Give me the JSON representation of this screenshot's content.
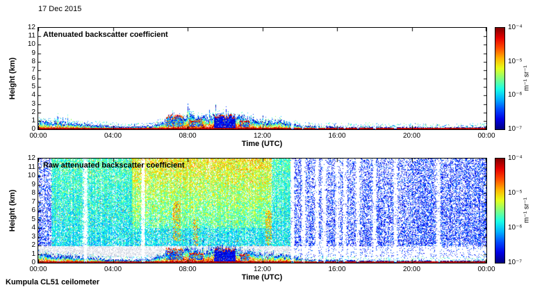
{
  "page": {
    "date_label": "17 Dec 2015",
    "footer_label": "Kumpula CL51 ceilometer"
  },
  "colors": {
    "background": "#ffffff",
    "axis": "#000000",
    "colormap": "jet"
  },
  "chart_data": [
    {
      "id": "attenuated-backscatter",
      "type": "heatmap",
      "title": "Attenuated backscatter coefficient",
      "xlabel": "Time (UTC)",
      "ylabel": "Height (km)",
      "x_ticks": [
        "00:00",
        "04:00",
        "08:00",
        "12:00",
        "16:00",
        "20:00",
        "00:00"
      ],
      "x_range_hours": [
        0,
        24
      ],
      "y_ticks": [
        12,
        11,
        10,
        9,
        8,
        7,
        6,
        5,
        4,
        3,
        2,
        1,
        0
      ],
      "ylim": [
        0,
        12
      ],
      "grid": false,
      "colorbar": {
        "colormap": "jet",
        "scale": "log",
        "range": [
          "1e-7",
          "1e-4"
        ],
        "ticks": [
          "10⁻⁴",
          "10⁻⁵",
          "10⁻⁶",
          "10⁻⁷"
        ],
        "unit_label": "m⁻¹ sr⁻¹"
      },
      "boundary_layer_top_km": [
        0.9,
        0.75,
        0.6,
        0.45,
        0.3,
        0.25,
        0.35,
        1.1,
        1.4,
        1.3,
        1.7,
        1.3,
        0.85,
        0.9,
        0.4,
        0.3,
        0.25,
        0.2,
        0.2,
        0.18,
        0.2,
        0.18,
        0.16,
        0.2,
        0.2
      ],
      "cloud_patches": [
        {
          "t0": 6.85,
          "t1": 7.75,
          "z0": 0.3,
          "z1": 1.5,
          "style": "mixed"
        },
        {
          "t0": 8.1,
          "t1": 8.8,
          "z0": 0.25,
          "z1": 1.0,
          "style": "mixed"
        },
        {
          "t0": 9.45,
          "t1": 10.55,
          "z0": 0.15,
          "z1": 1.55,
          "style": "solid"
        },
        {
          "t0": 10.8,
          "t1": 11.3,
          "z0": 0.2,
          "z1": 0.9,
          "style": "mixed"
        }
      ],
      "signal_gaps_hours": [
        13.6,
        14.2,
        14.9,
        15.3,
        16.0,
        16.4,
        17.1,
        18.0,
        19.1
      ]
    },
    {
      "id": "raw-attenuated-backscatter",
      "type": "heatmap",
      "title": "Raw attenuated backscatter coefficient",
      "xlabel": "Time (UTC)",
      "ylabel": "Height (km)",
      "x_ticks": [
        "00:00",
        "04:00",
        "08:00",
        "12:00",
        "16:00",
        "20:00",
        "00:00"
      ],
      "x_range_hours": [
        0,
        24
      ],
      "y_ticks": [
        12,
        11,
        10,
        9,
        8,
        7,
        6,
        5,
        4,
        3,
        2,
        1,
        0
      ],
      "ylim": [
        0,
        12
      ],
      "grid": false,
      "colorbar": {
        "colormap": "jet",
        "scale": "log",
        "range": [
          "1e-7",
          "1e-4"
        ],
        "ticks": [
          "10⁻⁴",
          "10⁻⁵",
          "10⁻⁶",
          "10⁻⁷"
        ],
        "unit_label": "m⁻¹ sr⁻¹"
      },
      "noise_plume": {
        "t0": 0.7,
        "t1": 13.5,
        "yellow_t0": 5.0,
        "yellow_t1": 12.5
      },
      "warm_streaks": [
        {
          "t0": 7.25,
          "t1": 7.6,
          "z0": 2.5,
          "z1": 7.0
        },
        {
          "t0": 8.3,
          "t1": 8.55,
          "z0": 2.0,
          "z1": 5.0
        },
        {
          "t0": 12.2,
          "t1": 12.5,
          "z0": 2.0,
          "z1": 6.0
        }
      ],
      "grey_deck": {
        "t0": 0,
        "t1": 24,
        "z0": 0.7,
        "z1": 1.9,
        "speckle_end": 13.5
      },
      "boundary_layer_top_km": [
        0.9,
        0.75,
        0.6,
        0.45,
        0.3,
        0.25,
        0.35,
        1.1,
        1.4,
        1.3,
        1.7,
        1.3,
        0.85,
        0.9,
        0.4,
        0.3,
        0.25,
        0.2,
        0.2,
        0.18,
        0.2,
        0.18,
        0.16,
        0.2,
        0.2
      ],
      "cloud_patches": [
        {
          "t0": 6.85,
          "t1": 7.75,
          "z0": 0.3,
          "z1": 1.5,
          "style": "mixed"
        },
        {
          "t0": 8.1,
          "t1": 8.8,
          "z0": 0.25,
          "z1": 1.0,
          "style": "mixed"
        },
        {
          "t0": 9.45,
          "t1": 10.55,
          "z0": 0.15,
          "z1": 1.55,
          "style": "solid"
        },
        {
          "t0": 10.8,
          "t1": 11.3,
          "z0": 0.2,
          "z1": 0.9,
          "style": "mixed"
        }
      ],
      "signal_gaps_hours": [
        2.5,
        5.6,
        13.6,
        14.2,
        14.9,
        15.3,
        16.0,
        16.4,
        17.1,
        18.0,
        19.1,
        21.4
      ]
    }
  ]
}
